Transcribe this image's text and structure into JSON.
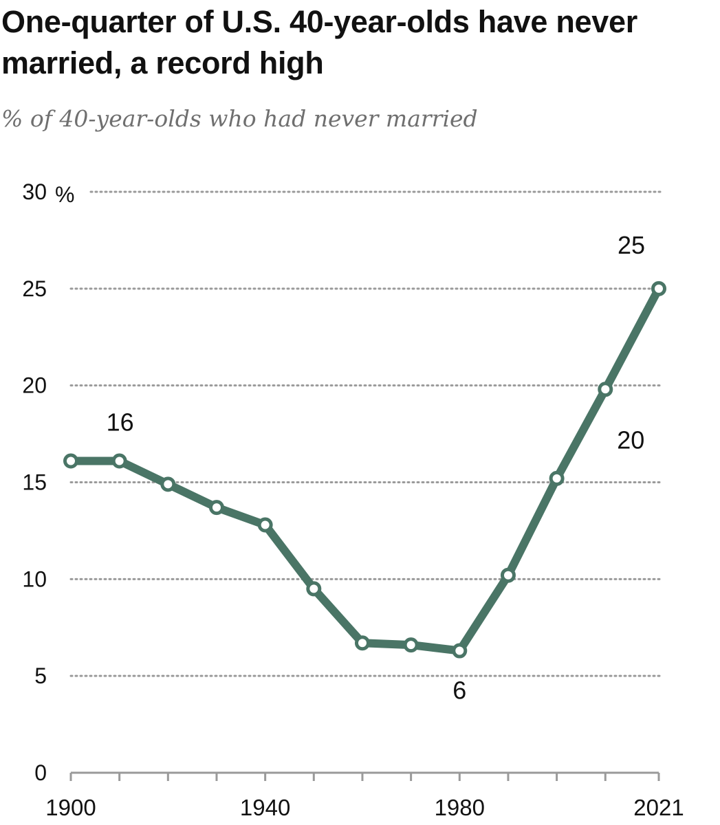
{
  "title": "One-quarter of U.S. 40-year-olds have never married, a record high",
  "subtitle": "% of 40-year-olds who had never married",
  "colors": {
    "line": "#4a7566",
    "marker_fill": "#ffffff",
    "grid": "#9a9a9a",
    "axis": "#9a9a9a"
  },
  "chart_data": {
    "type": "line",
    "x": [
      1900,
      1910,
      1920,
      1930,
      1940,
      1950,
      1960,
      1970,
      1980,
      1990,
      2000,
      2010,
      2021
    ],
    "series": [
      {
        "values": [
          16.1,
          16.1,
          14.9,
          13.7,
          12.8,
          9.5,
          6.7,
          6.6,
          6.3,
          10.2,
          15.2,
          19.8,
          25.0
        ]
      }
    ],
    "ylim": [
      0,
      30
    ],
    "yticks": [
      0,
      5,
      10,
      15,
      20,
      25,
      30
    ],
    "ytick_labels": [
      "0",
      "5",
      "10",
      "15",
      "20",
      "25",
      "30"
    ],
    "y_unit_label": "%",
    "xticks_labeled": [
      "1900",
      "1940",
      "1980",
      "2021"
    ],
    "grid": "dotted horizontal",
    "data_labels": [
      {
        "x": 1910,
        "text": "16"
      },
      {
        "x": 1980,
        "text": "6"
      },
      {
        "x": 2010,
        "text": "20"
      },
      {
        "x": 2021,
        "text": "25"
      }
    ]
  }
}
